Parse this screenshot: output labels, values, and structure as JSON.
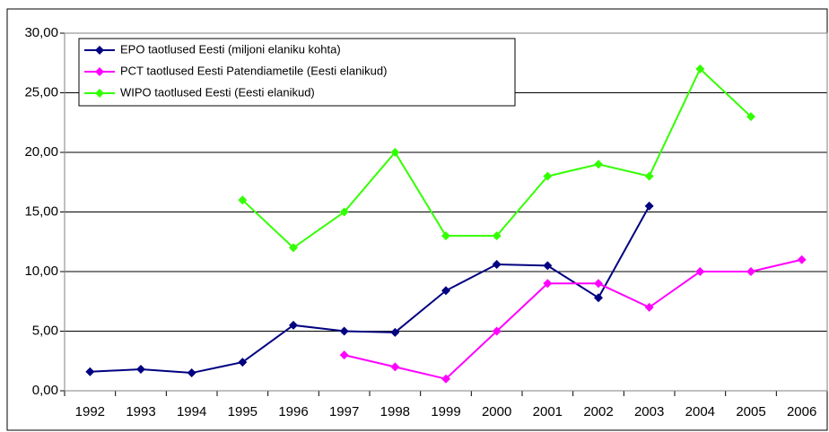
{
  "chart_data": {
    "type": "line",
    "categories": [
      "1992",
      "1993",
      "1994",
      "1995",
      "1996",
      "1997",
      "1998",
      "1999",
      "2000",
      "2001",
      "2002",
      "2003",
      "2004",
      "2005",
      "2006"
    ],
    "series": [
      {
        "name": "EPO taotlused Eesti (miljoni elaniku kohta)",
        "color": "#000080",
        "values": [
          1.6,
          1.8,
          1.5,
          2.4,
          5.5,
          5.0,
          4.9,
          8.4,
          10.6,
          10.5,
          7.8,
          15.5,
          null,
          null,
          null
        ]
      },
      {
        "name": "PCT taotlused Eesti Patendiametile (Eesti elanikud)",
        "color": "#ff00ff",
        "values": [
          null,
          null,
          null,
          null,
          null,
          3,
          2,
          1,
          5,
          9,
          9,
          7,
          10,
          10,
          11
        ]
      },
      {
        "name": "WIPO taotlused Eesti (Eesti elanikud)",
        "color": "#33ff00",
        "values": [
          null,
          null,
          null,
          16,
          12,
          15,
          20,
          13,
          13,
          18,
          19,
          18,
          27,
          23,
          null
        ]
      }
    ],
    "ylim": [
      0,
      30
    ],
    "yticks": [
      {
        "value": 0,
        "label": "0,00"
      },
      {
        "value": 5,
        "label": "5,00"
      },
      {
        "value": 10,
        "label": "10,00"
      },
      {
        "value": 15,
        "label": "15,00"
      },
      {
        "value": 20,
        "label": "20,00"
      },
      {
        "value": 25,
        "label": "25,00"
      },
      {
        "value": 30,
        "label": "30,00"
      }
    ],
    "grid": true
  }
}
